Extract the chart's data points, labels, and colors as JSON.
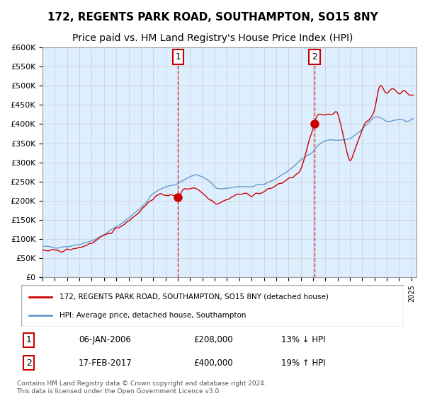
{
  "title": "172, REGENTS PARK ROAD, SOUTHAMPTON, SO15 8NY",
  "subtitle": "Price paid vs. HM Land Registry's House Price Index (HPI)",
  "legend_line1": "172, REGENTS PARK ROAD, SOUTHAMPTON, SO15 8NY (detached house)",
  "legend_line2": "HPI: Average price, detached house, Southampton",
  "annotation1_label": "1",
  "annotation1_date": "2006-01-06",
  "annotation1_price": 208000,
  "annotation1_text": "06-JAN-2006",
  "annotation1_price_text": "£208,000",
  "annotation1_hpi_text": "13% ↓ HPI",
  "annotation2_label": "2",
  "annotation2_date": "2017-02-17",
  "annotation2_price": 400000,
  "annotation2_text": "17-FEB-2017",
  "annotation2_price_text": "£400,000",
  "annotation2_hpi_text": "19% ↑ HPI",
  "red_color": "#cc0000",
  "blue_color": "#6699cc",
  "bg_color": "#ddeeff",
  "grid_color": "#cccccc",
  "ylim_min": 0,
  "ylim_max": 600000,
  "ytick_step": 50000,
  "footer": "Contains HM Land Registry data © Crown copyright and database right 2024.\nThis data is licensed under the Open Government Licence v3.0.",
  "title_fontsize": 11,
  "subtitle_fontsize": 10
}
